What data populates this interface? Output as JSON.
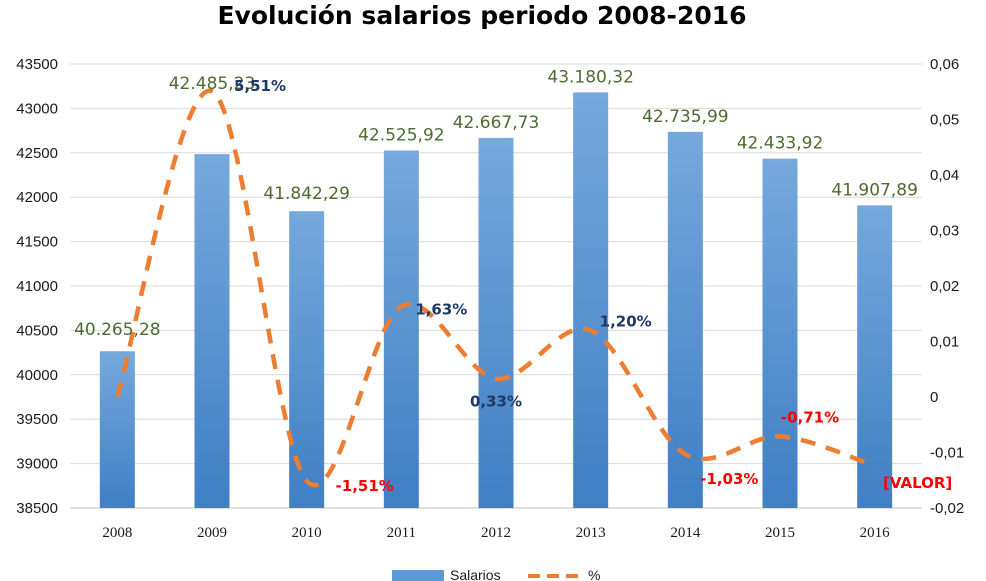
{
  "chart_data": {
    "type": "bar",
    "title": "Evolución salarios periodo 2008-2016",
    "categories": [
      "2008",
      "2009",
      "2010",
      "2011",
      "2012",
      "2013",
      "2014",
      "2015",
      "2016"
    ],
    "series": [
      {
        "name": "Salarios",
        "type": "bar",
        "axis": "left",
        "color": "#5b9bd5",
        "values": [
          40265.28,
          42485.23,
          41842.29,
          42525.92,
          42667.73,
          43180.32,
          42735.99,
          42433.92,
          41907.89
        ],
        "labels": [
          "40.265,28",
          "42.485,23",
          "41.842,29",
          "42.525,92",
          "42.667,73",
          "43.180,32",
          "42.735,99",
          "42.433,92",
          "41.907,89"
        ]
      },
      {
        "name": "%",
        "type": "line",
        "style": "dashed",
        "axis": "right",
        "color": "#ed7d31",
        "values": [
          0,
          0.0551,
          -0.0151,
          0.0163,
          0.0033,
          0.012,
          -0.0103,
          -0.0071,
          -0.0124
        ],
        "labels": [
          "",
          "5,51%",
          "-1,51%",
          "1,63%",
          "0,33%",
          "1,20%",
          "-1,03%",
          "-0,71%",
          "[VALOR]"
        ]
      }
    ],
    "y_left": {
      "ylim": [
        38500,
        43500
      ],
      "ticks": [
        38500,
        39000,
        39500,
        40000,
        40500,
        41000,
        41500,
        42000,
        42500,
        43000,
        43500
      ],
      "tick_labels": [
        "38500",
        "39000",
        "39500",
        "40000",
        "40500",
        "41000",
        "41500",
        "42000",
        "42500",
        "43000",
        "43500"
      ]
    },
    "y_right": {
      "ylim": [
        -0.02,
        0.06
      ],
      "ticks": [
        -0.02,
        -0.01,
        0,
        0.01,
        0.02,
        0.03,
        0.04,
        0.05,
        0.06
      ],
      "tick_labels": [
        "-0,02",
        "-0,01",
        "0",
        "0,01",
        "0,02",
        "0,03",
        "0,04",
        "0,05",
        "0,06"
      ]
    },
    "grid": true,
    "legend": "bottom",
    "colors": {
      "positive_label": "#1f3864",
      "negative_label": "#ff0000",
      "value_label": "#4e6b2f"
    }
  }
}
